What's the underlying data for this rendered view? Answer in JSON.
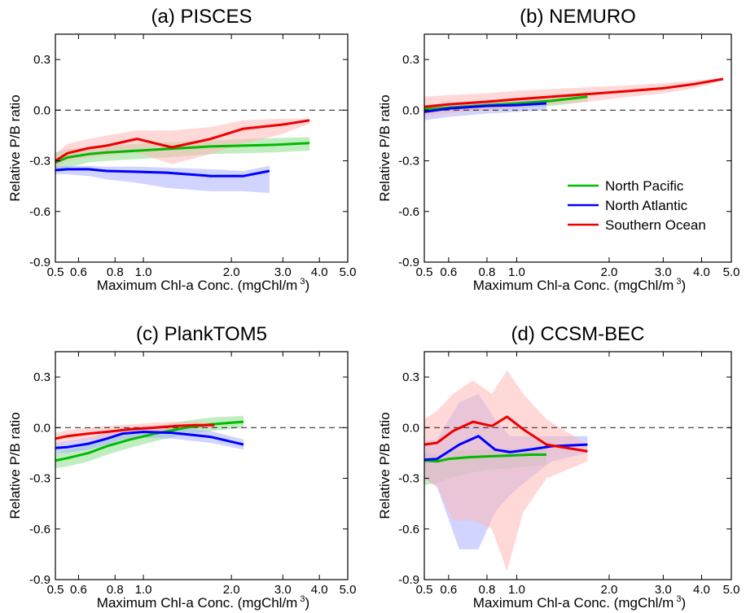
{
  "chart_data": [
    {
      "type": "line",
      "title": "(a) PISCES",
      "xlabel": "Maximum Chl-a Conc. (mgChl/m",
      "xlabel_sup": "3",
      "xlabel_close": ")",
      "ylabel": "Relative P/B ratio",
      "xscale": "log",
      "xlim": [
        0.5,
        5.0
      ],
      "ylim": [
        -0.9,
        0.45
      ],
      "xticks": [
        0.5,
        0.6,
        0.8,
        1.0,
        2.0,
        3.0,
        4.0,
        5.0
      ],
      "xticklabels": [
        "0.5",
        "0.6",
        "0.8",
        "1.0",
        "2.0",
        "3.0",
        "4.0",
        "5.0"
      ],
      "yticks": [
        -0.9,
        -0.6,
        -0.3,
        0.0,
        0.3
      ],
      "yticklabels": [
        "-0.9",
        "-0.6",
        "-0.3",
        "0.0",
        "0.3"
      ],
      "zero_line": true,
      "series": [
        {
          "key": "np",
          "color": "#00bb00",
          "band_color": "#8ee08e",
          "x": [
            0.5,
            0.55,
            0.65,
            0.75,
            0.95,
            1.2,
            1.7,
            2.2,
            2.8,
            3.7
          ],
          "y": [
            -0.31,
            -0.28,
            -0.26,
            -0.25,
            -0.24,
            -0.23,
            -0.215,
            -0.21,
            -0.205,
            -0.195
          ],
          "upper": [
            -0.25,
            -0.23,
            -0.22,
            -0.21,
            -0.2,
            -0.19,
            -0.18,
            -0.17,
            -0.165,
            -0.16
          ],
          "lower": [
            -0.37,
            -0.34,
            -0.31,
            -0.3,
            -0.29,
            -0.28,
            -0.26,
            -0.255,
            -0.25,
            -0.24
          ]
        },
        {
          "key": "na",
          "color": "#0000ff",
          "band_color": "#aab0ff",
          "x": [
            0.5,
            0.55,
            0.65,
            0.75,
            0.95,
            1.2,
            1.7,
            2.2,
            2.7
          ],
          "y": [
            -0.355,
            -0.35,
            -0.35,
            -0.36,
            -0.365,
            -0.37,
            -0.39,
            -0.39,
            -0.36
          ],
          "upper": [
            -0.33,
            -0.33,
            -0.33,
            -0.335,
            -0.335,
            -0.34,
            -0.35,
            -0.36,
            -0.33
          ],
          "lower": [
            -0.38,
            -0.38,
            -0.39,
            -0.41,
            -0.43,
            -0.46,
            -0.48,
            -0.48,
            -0.49
          ]
        },
        {
          "key": "so",
          "color": "#ee0000",
          "band_color": "#ffb8b8",
          "x": [
            0.5,
            0.55,
            0.65,
            0.75,
            0.95,
            1.25,
            1.7,
            2.2,
            3.0,
            3.7
          ],
          "y": [
            -0.3,
            -0.255,
            -0.225,
            -0.21,
            -0.17,
            -0.22,
            -0.17,
            -0.11,
            -0.085,
            -0.06
          ],
          "upper": [
            -0.26,
            -0.2,
            -0.17,
            -0.15,
            -0.12,
            -0.12,
            -0.1,
            -0.06,
            -0.05,
            -0.05
          ],
          "lower": [
            -0.34,
            -0.3,
            -0.28,
            -0.27,
            -0.25,
            -0.32,
            -0.26,
            -0.2,
            -0.14,
            -0.08
          ]
        }
      ]
    },
    {
      "type": "line",
      "title": "(b) NEMURO",
      "xlabel": "Maximum Chl-a Conc. (mgChl/m",
      "xlabel_sup": "3",
      "xlabel_close": ")",
      "ylabel": "Relative P/B ratio",
      "xscale": "log",
      "xlim": [
        0.5,
        5.0
      ],
      "ylim": [
        -0.9,
        0.45
      ],
      "xticks": [
        0.5,
        0.6,
        0.8,
        1.0,
        2.0,
        3.0,
        4.0,
        5.0
      ],
      "xticklabels": [
        "0.5",
        "0.6",
        "0.8",
        "1.0",
        "2.0",
        "3.0",
        "4.0",
        "5.0"
      ],
      "yticks": [
        -0.9,
        -0.6,
        -0.3,
        0.0,
        0.3
      ],
      "yticklabels": [
        "-0.9",
        "-0.6",
        "-0.3",
        "0.0",
        "0.3"
      ],
      "zero_line": true,
      "legend": {
        "position": "middle-right",
        "labels": [
          "North Pacific",
          "North Atlantic",
          "Southern Ocean"
        ]
      },
      "series": [
        {
          "key": "np",
          "color": "#00bb00",
          "band_color": "#8ee08e",
          "x": [
            0.5,
            0.6,
            0.8,
            1.0,
            1.3,
            1.7
          ],
          "y": [
            0.005,
            0.015,
            0.03,
            0.04,
            0.055,
            0.08
          ],
          "upper": [
            0.03,
            0.04,
            0.06,
            0.07,
            0.085,
            0.11
          ],
          "lower": [
            -0.02,
            -0.01,
            0.0,
            0.01,
            0.025,
            0.05
          ]
        },
        {
          "key": "na",
          "color": "#0000ff",
          "band_color": "#aab0ff",
          "x": [
            0.5,
            0.6,
            0.8,
            1.0,
            1.25
          ],
          "y": [
            -0.01,
            0.01,
            0.025,
            0.03,
            0.04
          ],
          "upper": [
            0.02,
            0.035,
            0.05,
            0.06,
            0.065
          ],
          "lower": [
            -0.06,
            -0.04,
            -0.02,
            -0.01,
            0.0
          ]
        },
        {
          "key": "so",
          "color": "#ee0000",
          "band_color": "#ffb8b8",
          "x": [
            0.5,
            0.6,
            0.8,
            1.0,
            1.3,
            1.7,
            2.2,
            3.0,
            3.8,
            4.7
          ],
          "y": [
            0.02,
            0.035,
            0.05,
            0.065,
            0.08,
            0.095,
            0.11,
            0.13,
            0.155,
            0.185
          ],
          "upper": [
            0.08,
            0.09,
            0.1,
            0.115,
            0.125,
            0.135,
            0.145,
            0.16,
            0.175,
            0.19
          ],
          "lower": [
            -0.04,
            -0.02,
            0.0,
            0.015,
            0.035,
            0.05,
            0.075,
            0.1,
            0.13,
            0.175
          ]
        }
      ]
    },
    {
      "type": "line",
      "title": "(c) PlankTOM5",
      "xlabel": "Maximum Chl-a Conc. (mgChl/m",
      "xlabel_sup": "3",
      "xlabel_close": ")",
      "ylabel": "Relative P/B ratio",
      "xscale": "log",
      "xlim": [
        0.5,
        5.0
      ],
      "ylim": [
        -0.9,
        0.45
      ],
      "xticks": [
        0.5,
        0.6,
        0.8,
        1.0,
        2.0,
        3.0,
        4.0,
        5.0
      ],
      "xticklabels": [
        "0.5",
        "0.6",
        "0.8",
        "1.0",
        "2.0",
        "3.0",
        "4.0",
        "5.0"
      ],
      "yticks": [
        -0.9,
        -0.6,
        -0.3,
        0.0,
        0.3
      ],
      "yticklabels": [
        "-0.9",
        "-0.6",
        "-0.3",
        "0.0",
        "0.3"
      ],
      "zero_line": true,
      "series": [
        {
          "key": "np",
          "color": "#00bb00",
          "band_color": "#8ee08e",
          "x": [
            0.5,
            0.55,
            0.65,
            0.75,
            0.9,
            1.1,
            1.4,
            1.7,
            2.2
          ],
          "y": [
            -0.195,
            -0.18,
            -0.15,
            -0.11,
            -0.07,
            -0.035,
            0.0,
            0.02,
            0.035
          ],
          "upper": [
            -0.15,
            -0.13,
            -0.1,
            -0.06,
            -0.02,
            0.01,
            0.04,
            0.06,
            0.07
          ],
          "lower": [
            -0.24,
            -0.23,
            -0.2,
            -0.16,
            -0.12,
            -0.08,
            -0.04,
            -0.02,
            0.0
          ]
        },
        {
          "key": "na",
          "color": "#0000ff",
          "band_color": "#aab0ff",
          "x": [
            0.5,
            0.55,
            0.65,
            0.75,
            0.85,
            1.0,
            1.25,
            1.7,
            2.2
          ],
          "y": [
            -0.12,
            -0.115,
            -0.095,
            -0.065,
            -0.035,
            -0.025,
            -0.03,
            -0.055,
            -0.1
          ],
          "upper": [
            -0.09,
            -0.08,
            -0.06,
            -0.03,
            0.0,
            0.01,
            0.005,
            -0.02,
            -0.07
          ],
          "lower": [
            -0.15,
            -0.15,
            -0.13,
            -0.1,
            -0.07,
            -0.06,
            -0.065,
            -0.09,
            -0.13
          ]
        },
        {
          "key": "so",
          "color": "#ee0000",
          "band_color": "#ffb8b8",
          "x": [
            0.5,
            0.55,
            0.65,
            0.75,
            0.9,
            1.1,
            1.3,
            1.5,
            1.75
          ],
          "y": [
            -0.065,
            -0.05,
            -0.035,
            -0.025,
            -0.01,
            0.0,
            0.01,
            0.015,
            0.015
          ],
          "upper": [
            -0.03,
            -0.015,
            0.0,
            0.01,
            0.02,
            0.03,
            0.035,
            0.035,
            0.03
          ],
          "lower": [
            -0.1,
            -0.085,
            -0.07,
            -0.06,
            -0.04,
            -0.03,
            -0.015,
            -0.005,
            0.0
          ]
        }
      ]
    },
    {
      "type": "line",
      "title": "(d) CCSM-BEC",
      "xlabel": "Maximum Chl-a Conc. (mgChl/m",
      "xlabel_sup": "3",
      "xlabel_close": ")",
      "ylabel": "Relative P/B ratio",
      "xscale": "log",
      "xlim": [
        0.5,
        5.0
      ],
      "ylim": [
        -0.9,
        0.45
      ],
      "xticks": [
        0.5,
        0.6,
        0.8,
        1.0,
        2.0,
        3.0,
        4.0,
        5.0
      ],
      "xticklabels": [
        "0.5",
        "0.6",
        "0.8",
        "1.0",
        "2.0",
        "3.0",
        "4.0",
        "5.0"
      ],
      "yticks": [
        -0.9,
        -0.6,
        -0.3,
        0.0,
        0.3
      ],
      "yticklabels": [
        "-0.9",
        "-0.6",
        "-0.3",
        "0.0",
        "0.3"
      ],
      "zero_line": true,
      "series": [
        {
          "key": "np",
          "color": "#00bb00",
          "band_color": "#8ee08e",
          "x": [
            0.5,
            0.55,
            0.6,
            0.7,
            0.8,
            0.95,
            1.1,
            1.25
          ],
          "y": [
            -0.195,
            -0.2,
            -0.185,
            -0.175,
            -0.17,
            -0.165,
            -0.16,
            -0.16
          ],
          "upper": [
            -0.15,
            -0.16,
            -0.14,
            -0.13,
            -0.13,
            -0.125,
            -0.12,
            -0.12
          ],
          "lower": [
            -0.34,
            -0.33,
            -0.3,
            -0.27,
            -0.25,
            -0.24,
            -0.23,
            -0.22
          ]
        },
        {
          "key": "na",
          "color": "#0000ff",
          "band_color": "#aab0ff",
          "x": [
            0.5,
            0.55,
            0.65,
            0.75,
            0.85,
            0.95,
            1.1,
            1.3,
            1.7
          ],
          "y": [
            -0.19,
            -0.185,
            -0.1,
            -0.05,
            -0.13,
            -0.145,
            -0.13,
            -0.11,
            -0.1
          ],
          "upper": [
            -0.08,
            -0.07,
            0.15,
            0.2,
            0.05,
            -0.05,
            -0.05,
            -0.05,
            -0.05
          ],
          "lower": [
            -0.3,
            -0.35,
            -0.72,
            -0.72,
            -0.5,
            -0.4,
            -0.3,
            -0.2,
            -0.15
          ]
        },
        {
          "key": "so",
          "color": "#ee0000",
          "band_color": "#ffb8b8",
          "x": [
            0.5,
            0.55,
            0.62,
            0.72,
            0.83,
            0.93,
            1.05,
            1.25,
            1.7
          ],
          "y": [
            -0.1,
            -0.09,
            -0.02,
            0.035,
            0.01,
            0.065,
            -0.01,
            -0.1,
            -0.14
          ],
          "upper": [
            0.05,
            0.1,
            0.2,
            0.28,
            0.2,
            0.34,
            0.2,
            0.05,
            -0.1
          ],
          "lower": [
            -0.3,
            -0.35,
            -0.55,
            -0.55,
            -0.6,
            -0.85,
            -0.5,
            -0.3,
            -0.2
          ]
        }
      ]
    }
  ]
}
